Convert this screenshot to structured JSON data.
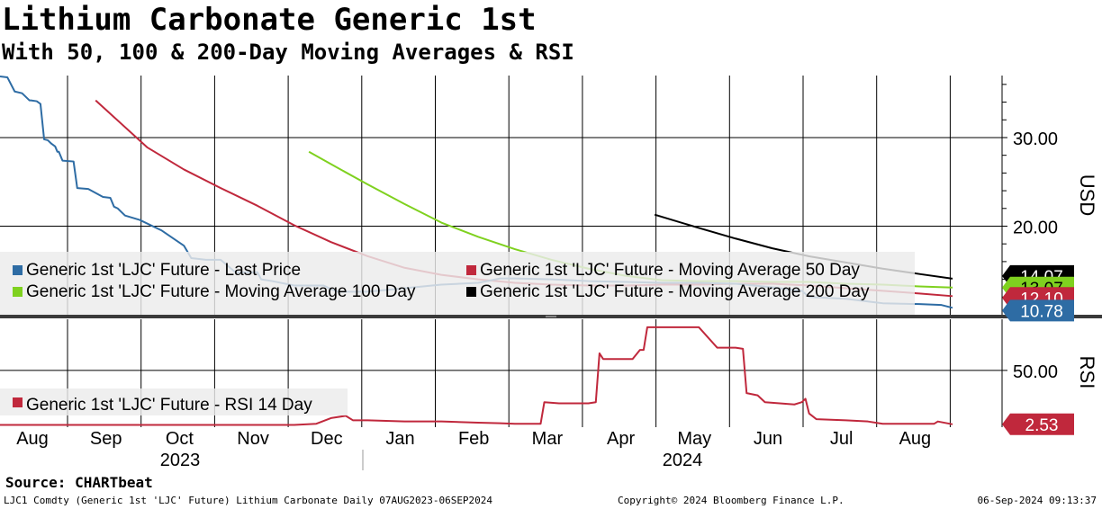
{
  "title": "Lithium Carbonate Generic 1st",
  "subtitle": "With 50, 100 & 200-Day Moving Averages & RSI",
  "source": "Source: CHARTbeat",
  "footer": {
    "left": "LJC1 Comdty (Generic 1st 'LJC' Future) Lithium Carbonate  Daily 07AUG2023-06SEP2024",
    "center": "Copyright© 2024 Bloomberg Finance L.P.",
    "right": "06-Sep-2024 09:13:37"
  },
  "colors": {
    "price": "#2e6ca4",
    "price_light": "#8fb4d6",
    "ma50": "#c0283c",
    "ma100": "#7fd11f",
    "ma200": "#000000",
    "rsi": "#c0283c",
    "rsi_light": "#e48b98",
    "grid": "#000000",
    "panel_separator": "#3a3a3a"
  },
  "chart_data": [
    {
      "type": "line",
      "panel": "price",
      "ylabel": "USD",
      "ylim": [
        10.0,
        37.0
      ],
      "y_ticks": [
        "30.00",
        "20.00"
      ],
      "x_months": [
        "Aug",
        "Sep",
        "Oct",
        "Nov",
        "Dec",
        "Jan",
        "Feb",
        "Mar",
        "Apr",
        "May",
        "Jun",
        "Jul",
        "Aug"
      ],
      "x_years": [
        "2023",
        "2024"
      ],
      "grid": true,
      "legend_position": "bottom-left",
      "series": [
        {
          "name": "Generic 1st 'LJC' Future - Last Price",
          "color_key": "price",
          "last_label": "10.78",
          "x": [
            0.0,
            0.1,
            0.2,
            0.3,
            0.4,
            0.42,
            0.5,
            0.55,
            0.6,
            0.65,
            0.7,
            0.75,
            0.78,
            0.8,
            0.85,
            1.0,
            1.05,
            1.2,
            1.4,
            1.5,
            1.55,
            1.6,
            1.7,
            1.9,
            2.2,
            2.5,
            2.6,
            2.8,
            3.0,
            3.2,
            3.5,
            3.55,
            3.7,
            4.0,
            4.2,
            4.4,
            4.5,
            4.6,
            4.8,
            5.0,
            5.5,
            6.0,
            6.5,
            6.8,
            7.0,
            7.5,
            8.0,
            8.5,
            9.0,
            9.5,
            10.0,
            10.5,
            10.9,
            11.0,
            11.5,
            11.9,
            12.0,
            12.5,
            12.8,
            12.95
          ],
          "values": [
            36.9,
            36.8,
            35.2,
            35.0,
            34.2,
            34.2,
            34.1,
            33.8,
            29.8,
            29.7,
            29.3,
            29.0,
            28.4,
            28.4,
            27.4,
            27.3,
            24.3,
            24.2,
            23.3,
            23.2,
            22.2,
            22.0,
            21.2,
            20.7,
            19.5,
            17.8,
            16.4,
            16.2,
            16.2,
            14.8,
            14.8,
            14.0,
            13.8,
            13.3,
            13.3,
            13.3,
            12.9,
            12.6,
            12.6,
            12.6,
            13.0,
            13.4,
            13.6,
            14.1,
            14.1,
            14.0,
            13.8,
            13.7,
            13.6,
            13.6,
            13.5,
            13.1,
            12.7,
            12.0,
            11.8,
            11.4,
            11.3,
            11.2,
            11.1,
            10.78
          ]
        },
        {
          "name": "Generic 1st 'LJC' Future - Moving Average 50 Day",
          "color_key": "ma50",
          "last_label": "12.10",
          "x": [
            1.3,
            2.0,
            2.5,
            3.0,
            3.5,
            4.0,
            4.5,
            5.0,
            5.5,
            6.0,
            6.5,
            7.0,
            7.5,
            8.0,
            8.5,
            9.0,
            9.5,
            10.0,
            10.5,
            11.0,
            11.5,
            12.0,
            12.5,
            12.95
          ],
          "values": [
            34.2,
            28.9,
            26.4,
            24.3,
            22.3,
            20.1,
            18.2,
            16.6,
            15.3,
            14.5,
            14.0,
            13.6,
            13.4,
            13.3,
            13.3,
            13.4,
            13.4,
            13.5,
            13.5,
            13.3,
            13.0,
            12.7,
            12.4,
            12.1
          ]
        },
        {
          "name": "Generic 1st 'LJC' Future - Moving Average 100 Day",
          "color_key": "ma100",
          "last_label": "13.07",
          "x": [
            4.2,
            4.5,
            5.0,
            5.5,
            6.0,
            6.5,
            7.0,
            7.5,
            8.0,
            8.5,
            9.0,
            9.5,
            10.0,
            10.5,
            11.0,
            11.5,
            12.0,
            12.5,
            12.95
          ],
          "values": [
            28.4,
            27.0,
            24.7,
            22.5,
            20.4,
            18.8,
            17.4,
            16.2,
            15.2,
            14.4,
            13.9,
            13.8,
            13.8,
            13.7,
            13.7,
            13.5,
            13.4,
            13.2,
            13.07
          ]
        },
        {
          "name": "Generic 1st 'LJC' Future - Moving Average 200 Day",
          "color_key": "ma200",
          "last_label": "14.07",
          "x": [
            8.9,
            9.5,
            10.0,
            10.5,
            11.0,
            11.5,
            12.0,
            12.5,
            12.95
          ],
          "values": [
            21.3,
            19.8,
            18.6,
            17.5,
            16.6,
            15.9,
            15.2,
            14.6,
            14.07
          ]
        }
      ]
    },
    {
      "type": "line",
      "panel": "rsi",
      "ylabel": "RSI",
      "ylim": [
        0,
        95
      ],
      "y_ticks": [
        "50.00"
      ],
      "grid": true,
      "legend_position": "bottom-left",
      "series": [
        {
          "name": "Generic 1st 'LJC' Future - RSI 14 Day",
          "color_key": "rsi",
          "last_label": "2.53",
          "x": [
            0.0,
            1.0,
            2.0,
            3.0,
            4.0,
            4.3,
            4.5,
            4.7,
            4.8,
            5.0,
            5.5,
            6.0,
            6.5,
            6.8,
            7.0,
            7.2,
            7.35,
            7.4,
            7.6,
            8.0,
            8.1,
            8.15,
            8.2,
            8.5,
            8.6,
            8.7,
            8.75,
            8.8,
            9.0,
            9.2,
            9.25,
            9.5,
            9.75,
            9.8,
            10.0,
            10.1,
            10.15,
            10.3,
            10.4,
            10.8,
            10.9,
            10.95,
            11.0,
            11.1,
            11.5,
            11.8,
            12.0,
            12.4,
            12.7,
            12.75,
            12.95
          ],
          "values": [
            2.0,
            2.0,
            2.0,
            2.0,
            2.0,
            3.0,
            8.0,
            10.0,
            6.0,
            6.0,
            5.0,
            5.0,
            4.0,
            3.5,
            3.0,
            3.0,
            3.0,
            22.0,
            21.0,
            21.0,
            22.0,
            65.0,
            60.0,
            60.0,
            60.0,
            68.0,
            68.0,
            88.0,
            88.0,
            88.0,
            88.0,
            88.0,
            70.0,
            70.0,
            70.0,
            69.0,
            30.0,
            28.0,
            22.0,
            20.0,
            22.0,
            25.0,
            12.0,
            7.0,
            6.0,
            5.0,
            3.0,
            3.0,
            3.0,
            5.0,
            2.53
          ]
        }
      ]
    }
  ]
}
